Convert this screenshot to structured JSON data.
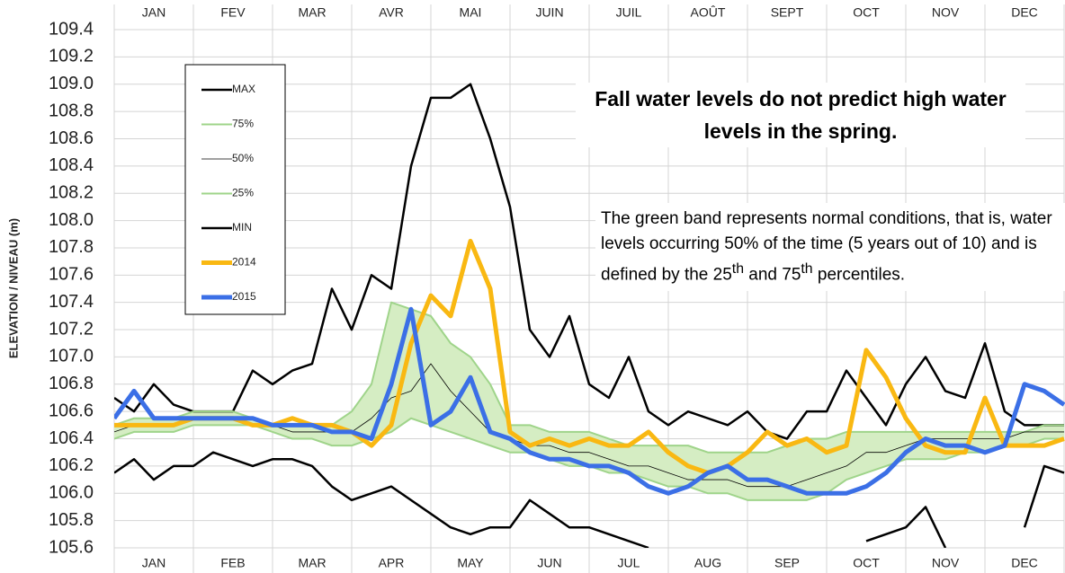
{
  "chart_data": {
    "type": "line",
    "title": "Fall water levels do not predict high water levels in the spring.",
    "note_parts": [
      "The green band represents normal conditions, that is, water levels occurring 50% of the time (5 years out of 10) and is defined by the 25",
      "th",
      " and 75",
      "th",
      " percentiles."
    ],
    "ylabel": "ELEVATION / NIVEAU (m)",
    "ylim": [
      105.6,
      109.4
    ],
    "yticks": [
      105.6,
      105.8,
      {
        "value": 106,
        "label": "106.0"
      },
      106.2,
      106.4,
      106.6,
      106.8,
      {
        "value": 107,
        "label": "107.0"
      },
      107.2,
      107.4,
      107.6,
      107.8,
      {
        "value": 108,
        "label": "108.0"
      },
      108.2,
      108.4,
      108.6,
      108.8,
      {
        "value": 109,
        "label": "109.0"
      },
      109.2,
      109.4
    ],
    "xlim": [
      0,
      12
    ],
    "xticks": [
      {
        "value": 0.5,
        "label": "JAN"
      },
      {
        "value": 1.5,
        "label": "FEB"
      },
      {
        "value": 2.5,
        "label": "MAR"
      },
      {
        "value": 3.5,
        "label": "APR"
      },
      {
        "value": 4.5,
        "label": "MAY"
      },
      {
        "value": 5.5,
        "label": "JUN"
      },
      {
        "value": 6.5,
        "label": "JUL"
      },
      {
        "value": 7.5,
        "label": "AUG"
      },
      {
        "value": 8.5,
        "label": "SEP"
      },
      {
        "value": 9.5,
        "label": "OCT"
      },
      {
        "value": 10.5,
        "label": "NOV"
      },
      {
        "value": 11.5,
        "label": "DEC"
      }
    ],
    "x2ticks": [
      {
        "value": 0.5,
        "label": "JAN"
      },
      {
        "value": 1.5,
        "label": "FEV"
      },
      {
        "value": 2.5,
        "label": "MAR"
      },
      {
        "value": 3.5,
        "label": "AVR"
      },
      {
        "value": 4.5,
        "label": "MAI"
      },
      {
        "value": 5.5,
        "label": "JUIN"
      },
      {
        "value": 6.5,
        "label": "JUIL"
      },
      {
        "value": 7.5,
        "label": "AOÛT"
      },
      {
        "value": 8.5,
        "label": "SEPT"
      },
      {
        "value": 9.5,
        "label": "OCT"
      },
      {
        "value": 10.5,
        "label": "NOV"
      },
      {
        "value": 11.5,
        "label": "DEC"
      }
    ],
    "xgrid": [
      0,
      1,
      2,
      3,
      4,
      5,
      6,
      7,
      8,
      9,
      10,
      11,
      12
    ],
    "grid": true,
    "legend": "upper left",
    "band": {
      "series": [
        1,
        3
      ],
      "color": "#d5edc3"
    },
    "x": [
      0,
      0.25,
      0.5,
      0.75,
      1,
      1.25,
      1.5,
      1.75,
      2,
      2.25,
      2.5,
      2.75,
      3,
      3.25,
      3.5,
      3.75,
      4,
      4.25,
      4.5,
      4.75,
      5,
      5.25,
      5.5,
      5.75,
      6,
      6.25,
      6.5,
      6.75,
      7,
      7.25,
      7.5,
      7.75,
      8,
      8.25,
      8.5,
      8.75,
      9,
      9.25,
      9.5,
      9.75,
      10,
      10.25,
      10.5,
      10.75,
      11,
      11.25,
      11.5,
      11.75,
      12
    ],
    "series": [
      {
        "name": "MAX",
        "color": "#000000",
        "width": 2.5,
        "values": [
          106.7,
          106.6,
          106.8,
          106.65,
          106.6,
          106.6,
          106.6,
          106.9,
          106.8,
          106.9,
          106.95,
          107.5,
          107.2,
          107.6,
          107.5,
          108.4,
          108.9,
          108.9,
          109.0,
          108.6,
          108.1,
          107.2,
          107.0,
          107.3,
          106.8,
          106.7,
          107.0,
          106.6,
          106.5,
          106.6,
          106.55,
          106.5,
          106.6,
          106.45,
          106.4,
          106.6,
          106.6,
          106.9,
          106.7,
          106.5,
          106.8,
          107.0,
          106.75,
          106.7,
          107.1,
          106.6,
          106.5,
          106.5,
          106.5
        ]
      },
      {
        "name": "75%",
        "color": "#9fd48a",
        "width": 2,
        "values": [
          106.5,
          106.55,
          106.55,
          106.55,
          106.6,
          106.6,
          106.6,
          106.55,
          106.5,
          106.5,
          106.5,
          106.5,
          106.6,
          106.8,
          107.4,
          107.35,
          107.3,
          107.1,
          107.0,
          106.8,
          106.5,
          106.5,
          106.45,
          106.45,
          106.45,
          106.4,
          106.35,
          106.35,
          106.35,
          106.35,
          106.3,
          106.3,
          106.3,
          106.3,
          106.35,
          106.4,
          106.4,
          106.45,
          106.45,
          106.45,
          106.45,
          106.45,
          106.45,
          106.45,
          106.45,
          106.45,
          106.45,
          106.5,
          106.5
        ]
      },
      {
        "name": "50%",
        "color": "#000000",
        "width": 0.8,
        "values": [
          106.45,
          106.5,
          106.5,
          106.5,
          106.55,
          106.55,
          106.55,
          106.5,
          106.5,
          106.45,
          106.45,
          106.45,
          106.45,
          106.55,
          106.7,
          106.75,
          106.95,
          106.75,
          106.6,
          106.45,
          106.4,
          106.35,
          106.35,
          106.3,
          106.3,
          106.25,
          106.2,
          106.2,
          106.15,
          106.1,
          106.1,
          106.1,
          106.05,
          106.05,
          106.05,
          106.1,
          106.15,
          106.2,
          106.3,
          106.3,
          106.35,
          106.4,
          106.4,
          106.4,
          106.4,
          106.4,
          106.45,
          106.45,
          106.45
        ]
      },
      {
        "name": "25%",
        "color": "#9fd48a",
        "width": 2,
        "values": [
          106.4,
          106.45,
          106.45,
          106.45,
          106.5,
          106.5,
          106.5,
          106.5,
          106.45,
          106.4,
          106.4,
          106.35,
          106.35,
          106.4,
          106.45,
          106.55,
          106.5,
          106.45,
          106.4,
          106.35,
          106.3,
          106.3,
          106.25,
          106.2,
          106.2,
          106.15,
          106.15,
          106.1,
          106.05,
          106.05,
          106.0,
          106.0,
          105.95,
          105.95,
          105.95,
          105.95,
          106.0,
          106.1,
          106.15,
          106.2,
          106.25,
          106.25,
          106.25,
          106.3,
          106.3,
          106.35,
          106.35,
          106.4,
          106.4
        ]
      },
      {
        "name": "MIN",
        "color": "#000000",
        "width": 2.5,
        "values": [
          106.15,
          106.25,
          106.1,
          106.2,
          106.2,
          106.3,
          106.25,
          106.2,
          106.25,
          106.25,
          106.2,
          106.05,
          105.95,
          106.0,
          106.05,
          105.95,
          105.85,
          105.75,
          105.7,
          105.75,
          105.75,
          105.95,
          105.85,
          105.75,
          105.75,
          105.7,
          105.65,
          105.6,
          null,
          null,
          null,
          null,
          null,
          null,
          null,
          null,
          null,
          null,
          105.65,
          105.7,
          105.75,
          105.9,
          105.6,
          null,
          null,
          null,
          105.75,
          106.2,
          106.15
        ]
      },
      {
        "name": "2014",
        "color": "#f9b812",
        "width": 5,
        "values": [
          106.5,
          106.5,
          106.5,
          106.5,
          106.55,
          106.55,
          106.55,
          106.5,
          106.5,
          106.55,
          106.5,
          106.5,
          106.45,
          106.35,
          106.5,
          107.1,
          107.45,
          107.3,
          107.85,
          107.5,
          106.45,
          106.35,
          106.4,
          106.35,
          106.4,
          106.35,
          106.35,
          106.45,
          106.3,
          106.2,
          106.15,
          106.2,
          106.3,
          106.45,
          106.35,
          106.4,
          106.3,
          106.35,
          107.05,
          106.85,
          106.55,
          106.35,
          106.3,
          106.3,
          106.7,
          106.35,
          106.35,
          106.35,
          106.4
        ]
      },
      {
        "name": "2015",
        "color": "#3b6fe6",
        "width": 5,
        "values": [
          106.55,
          106.75,
          106.55,
          106.55,
          106.55,
          106.55,
          106.55,
          106.55,
          106.5,
          106.5,
          106.5,
          106.45,
          106.45,
          106.4,
          106.8,
          107.35,
          106.5,
          106.6,
          106.85,
          106.45,
          106.4,
          106.3,
          106.25,
          106.25,
          106.2,
          106.2,
          106.15,
          106.05,
          106.0,
          106.05,
          106.15,
          106.2,
          106.1,
          106.1,
          106.05,
          106.0,
          106.0,
          106.0,
          106.05,
          106.15,
          106.3,
          106.4,
          106.35,
          106.35,
          106.3,
          106.35,
          106.8,
          106.75,
          106.65
        ]
      }
    ]
  }
}
